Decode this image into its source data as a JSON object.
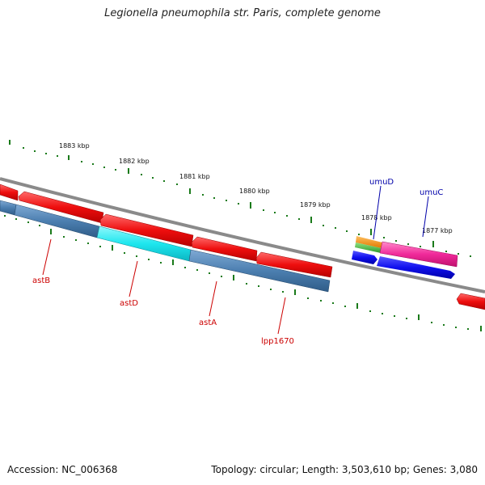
{
  "title": "Legionella pneumophila str. Paris, complete genome",
  "footer": {
    "accession": "Accession: NC_006368",
    "topology": "Topology: circular; Length: 3,503,610 bp; Genes: 3,080"
  },
  "scale_labels": [
    "1883 kbp",
    "1882 kbp",
    "1881 kbp",
    "1880 kbp",
    "1879 kbp",
    "1878 kbp",
    "1877 kbp"
  ],
  "gene_labels": [
    {
      "name": "astB",
      "color": "#cc0000"
    },
    {
      "name": "astD",
      "color": "#cc0000"
    },
    {
      "name": "astA",
      "color": "#cc0000"
    },
    {
      "name": "lpp1670",
      "color": "#cc0000"
    },
    {
      "name": "umuD",
      "color": "#0000aa"
    },
    {
      "name": "umuC",
      "color": "#0000aa"
    }
  ],
  "colors": {
    "backbone": "#8a8a8a",
    "tick": "#1a7a1a",
    "red_feature": "#ee1111",
    "steelblue_feature": "#4f7fae",
    "cyan_feature": "#22e8f0",
    "orange_feature": "#f08c10",
    "green_feature": "#44b040",
    "magenta_feature": "#f02a9a",
    "blue_feature": "#1010e8"
  }
}
